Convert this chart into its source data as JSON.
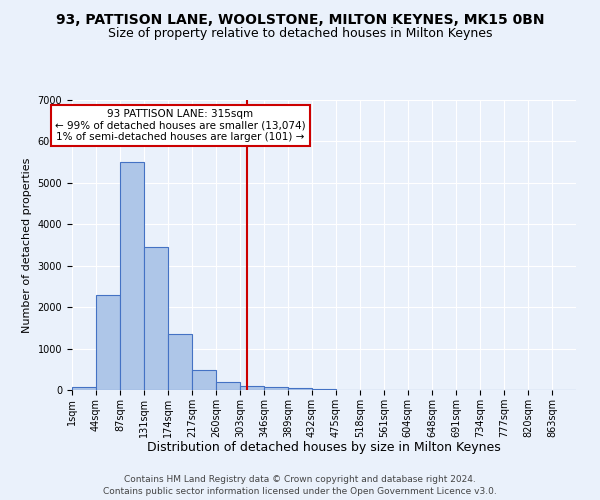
{
  "title1": "93, PATTISON LANE, WOOLSTONE, MILTON KEYNES, MK15 0BN",
  "title2": "Size of property relative to detached houses in Milton Keynes",
  "xlabel": "Distribution of detached houses by size in Milton Keynes",
  "ylabel": "Number of detached properties",
  "footer1": "Contains HM Land Registry data © Crown copyright and database right 2024.",
  "footer2": "Contains public sector information licensed under the Open Government Licence v3.0.",
  "annotation_line1": "93 PATTISON LANE: 315sqm",
  "annotation_line2": "← 99% of detached houses are smaller (13,074)",
  "annotation_line3": "1% of semi-detached houses are larger (101) →",
  "property_size": 315,
  "bar_labels": [
    "1sqm",
    "44sqm",
    "87sqm",
    "131sqm",
    "174sqm",
    "217sqm",
    "260sqm",
    "303sqm",
    "346sqm",
    "389sqm",
    "432sqm",
    "475sqm",
    "518sqm",
    "561sqm",
    "604sqm",
    "648sqm",
    "691sqm",
    "734sqm",
    "777sqm",
    "820sqm",
    "863sqm"
  ],
  "bar_values": [
    75,
    2300,
    5500,
    3450,
    1350,
    480,
    200,
    100,
    75,
    60,
    30,
    0,
    0,
    0,
    0,
    0,
    0,
    0,
    0,
    0,
    0
  ],
  "bar_color": "#aec6e8",
  "bar_edge_color": "#4472c4",
  "vline_color": "#cc0000",
  "vline_x": 315,
  "bin_edges": [
    1,
    44,
    87,
    131,
    174,
    217,
    260,
    303,
    346,
    389,
    432,
    475,
    518,
    561,
    604,
    648,
    691,
    734,
    777,
    820,
    863,
    906
  ],
  "ylim": [
    0,
    7000
  ],
  "yticks": [
    0,
    1000,
    2000,
    3000,
    4000,
    5000,
    6000,
    7000
  ],
  "bg_color": "#eaf1fb",
  "plot_bg_color": "#eaf1fb",
  "grid_color": "#ffffff",
  "annotation_box_edge_color": "#cc0000",
  "title1_fontsize": 10,
  "title2_fontsize": 9,
  "xlabel_fontsize": 9,
  "ylabel_fontsize": 8,
  "tick_fontsize": 7,
  "footer_fontsize": 6.5,
  "annotation_fontsize": 7.5
}
